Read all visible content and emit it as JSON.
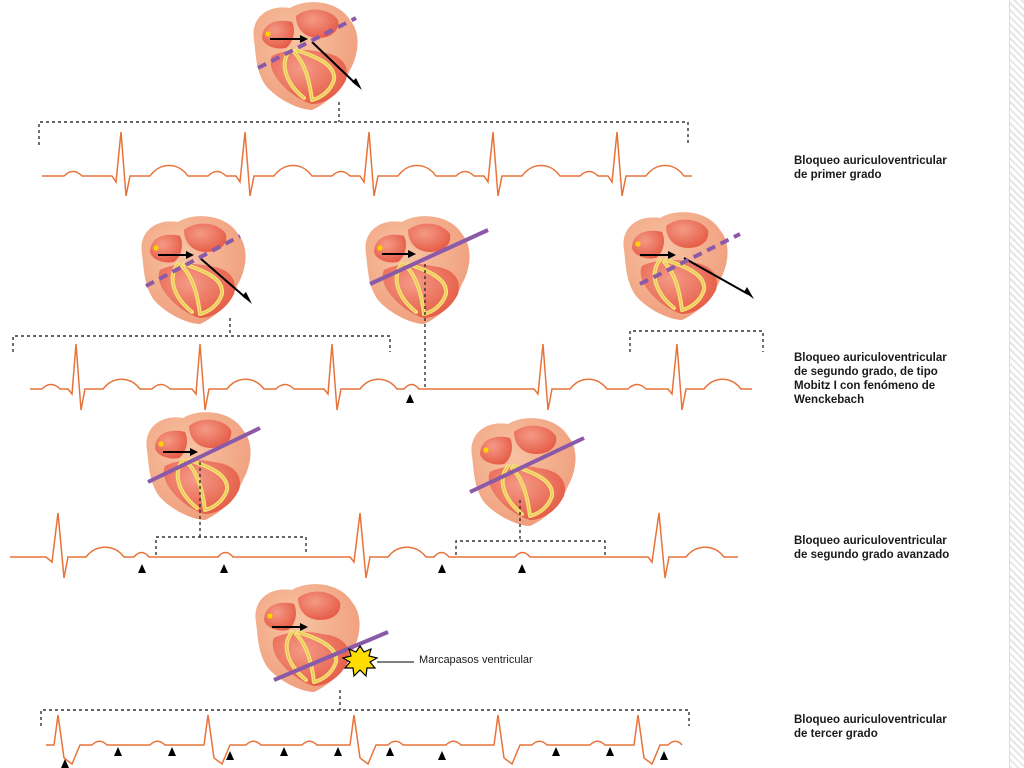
{
  "captions": {
    "first_degree": [
      "Bloqueo auriculoventricular",
      "de primer grado"
    ],
    "mobitz1": [
      "Bloqueo auriculoventricular",
      "de segundo grado, de tipo",
      "Mobitz I con fenómeno de",
      "Wenckebach"
    ],
    "advanced": [
      "Bloqueo auriculoventricular",
      "de segundo grado avanzado"
    ],
    "third_degree": [
      "Bloqueo auriculoventricular",
      "de tercer grado"
    ]
  },
  "pacemaker_label": "Marcapasos ventricular",
  "icons": {
    "heart": "heart-icon",
    "pacemaker": "starburst-icon",
    "p_marker": "triangle-marker-icon"
  },
  "colors": {
    "ecg_trace": "#e8733a",
    "block_line": "#8a5aa8",
    "heart_outer": "#f3b08a",
    "heart_inner": "#ee6a55",
    "conduction": "#f6e07a",
    "node": "#ffd200",
    "bracket": "#333333"
  }
}
